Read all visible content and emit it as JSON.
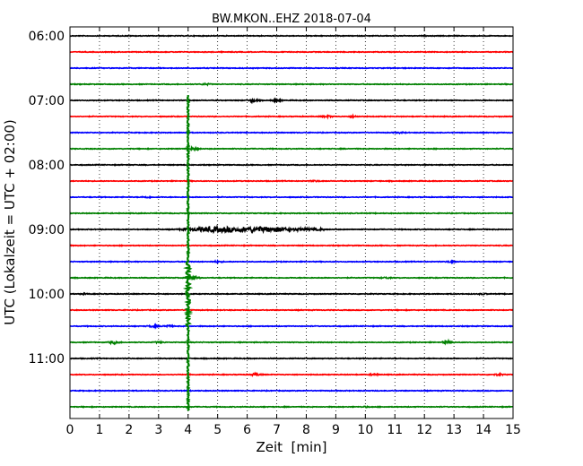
{
  "chart_data": {
    "type": "line",
    "title": "BW.MKON..EHZ 2018-07-04",
    "xlabel": "Zeit  [min]",
    "ylabel": "UTC (Lokalzeit = UTC + 02:00)",
    "xlim": [
      0,
      15
    ],
    "x_ticks": [
      "0",
      "1",
      "2",
      "3",
      "4",
      "5",
      "6",
      "7",
      "8",
      "9",
      "10",
      "11",
      "12",
      "13",
      "14",
      "15"
    ],
    "y_tick_labels": [
      "06:00",
      "07:00",
      "08:00",
      "09:00",
      "10:00",
      "11:00"
    ],
    "grid": "vertical dotted",
    "trace_colors": [
      "#000000",
      "#ff0000",
      "#0000ff",
      "#008000"
    ],
    "traces": [
      {
        "start": "06:00",
        "color": "#000000"
      },
      {
        "start": "06:15",
        "color": "#ff0000"
      },
      {
        "start": "06:30",
        "color": "#0000ff"
      },
      {
        "start": "06:45",
        "color": "#008000",
        "events": [
          {
            "x": 4.6,
            "amp": 0.35
          }
        ]
      },
      {
        "start": "07:00",
        "color": "#000000",
        "events": [
          {
            "x": 6.2,
            "amp": 0.6
          },
          {
            "x": 7.0,
            "amp": 0.45
          }
        ]
      },
      {
        "start": "07:15",
        "color": "#ff0000",
        "events": [
          {
            "x": 8.7,
            "amp": 0.4
          },
          {
            "x": 9.6,
            "amp": 0.3
          }
        ]
      },
      {
        "start": "07:30",
        "color": "#0000ff",
        "events": [
          {
            "x": 11.2,
            "amp": 0.25
          }
        ]
      },
      {
        "start": "07:45",
        "color": "#008000",
        "events": [
          {
            "x": 4.2,
            "amp": 0.55
          }
        ]
      },
      {
        "start": "08:00",
        "color": "#000000"
      },
      {
        "start": "08:15",
        "color": "#ff0000",
        "events": [
          {
            "x": 8.3,
            "amp": 0.25
          }
        ]
      },
      {
        "start": "08:30",
        "color": "#0000ff",
        "events": [
          {
            "x": 2.6,
            "amp": 0.3
          }
        ]
      },
      {
        "start": "08:45",
        "color": "#008000"
      },
      {
        "start": "09:00",
        "color": "#000000",
        "quake": {
          "x_start": 3.5,
          "x_peak": 4.8,
          "x_end": 8.6,
          "amp": 1.2
        }
      },
      {
        "start": "09:15",
        "color": "#ff0000"
      },
      {
        "start": "09:30",
        "color": "#0000ff",
        "events": [
          {
            "x": 5.0,
            "amp": 0.3
          },
          {
            "x": 12.9,
            "amp": 0.3
          }
        ]
      },
      {
        "start": "09:45",
        "color": "#008000",
        "events": [
          {
            "x": 4.2,
            "amp": 0.9
          },
          {
            "x": 10.7,
            "amp": 0.3
          }
        ]
      },
      {
        "start": "10:00",
        "color": "#000000",
        "events": [
          {
            "x": 0.5,
            "amp": 0.2
          },
          {
            "x": 14.0,
            "amp": 0.2
          }
        ]
      },
      {
        "start": "10:15",
        "color": "#ff0000"
      },
      {
        "start": "10:30",
        "color": "#0000ff",
        "events": [
          {
            "x": 2.8,
            "amp": 0.4
          },
          {
            "x": 3.3,
            "amp": 0.45
          }
        ]
      },
      {
        "start": "10:45",
        "color": "#008000",
        "events": [
          {
            "x": 1.5,
            "amp": 0.65
          },
          {
            "x": 3.0,
            "amp": 0.3
          },
          {
            "x": 12.8,
            "amp": 0.7
          }
        ]
      },
      {
        "start": "11:00",
        "color": "#000000"
      },
      {
        "start": "11:15",
        "color": "#ff0000",
        "events": [
          {
            "x": 6.3,
            "amp": 0.5
          },
          {
            "x": 10.3,
            "amp": 0.35
          },
          {
            "x": 14.5,
            "amp": 0.35
          }
        ]
      },
      {
        "start": "11:30",
        "color": "#0000ff"
      },
      {
        "start": "11:45",
        "color": "#008000",
        "events": [
          {
            "x": 10.0,
            "amp": 0.2
          }
        ]
      }
    ],
    "spike": {
      "x": 4.0,
      "from_trace": 4,
      "to_trace": 23,
      "color": "#008000"
    }
  }
}
